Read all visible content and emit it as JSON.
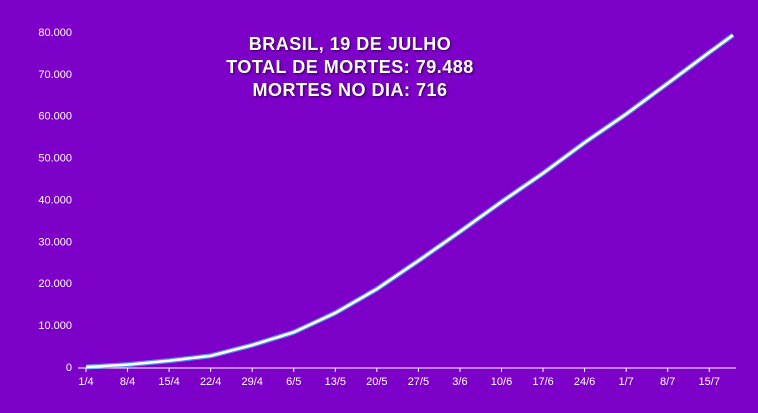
{
  "chart_data": {
    "type": "line",
    "title_lines": [
      "BRASIL,  19 DE JULHO",
      "TOTAL DE MORTES: 79.488",
      "MORTES NO DIA: 716"
    ],
    "categories": [
      "1/4",
      null,
      null,
      null,
      null,
      null,
      null,
      "8/4",
      null,
      null,
      null,
      null,
      null,
      null,
      "15/4",
      null,
      null,
      null,
      null,
      null,
      null,
      "22/4",
      null,
      null,
      null,
      null,
      null,
      null,
      "29/4",
      null,
      null,
      null,
      null,
      null,
      null,
      "6/5",
      null,
      null,
      null,
      null,
      null,
      null,
      "13/5",
      null,
      null,
      null,
      null,
      null,
      null,
      "20/5",
      null,
      null,
      null,
      null,
      null,
      null,
      "27/5",
      null,
      null,
      null,
      null,
      null,
      null,
      "3/6",
      null,
      null,
      null,
      null,
      null,
      null,
      "10/6",
      null,
      null,
      null,
      null,
      null,
      null,
      "17/6",
      null,
      null,
      null,
      null,
      null,
      null,
      "24/6",
      null,
      null,
      null,
      null,
      null,
      null,
      "1/7",
      null,
      null,
      null,
      null,
      null,
      null,
      "8/7",
      null,
      null,
      null,
      null,
      null,
      null,
      "15/7",
      null,
      null,
      null,
      null
    ],
    "values": [
      241,
      321,
      401,
      481,
      560,
      640,
      720,
      800,
      934,
      1067,
      1201,
      1335,
      1469,
      1602,
      1736,
      1903,
      2070,
      2237,
      2405,
      2572,
      2739,
      2906,
      3272,
      3637,
      4003,
      4369,
      4735,
      5100,
      5466,
      5905,
      6343,
      6782,
      7220,
      7659,
      8097,
      8536,
      9195,
      9854,
      10513,
      11172,
      11831,
      12490,
      13149,
      13965,
      14780,
      15596,
      16412,
      17227,
      18043,
      18859,
      19822,
      20785,
      21747,
      22710,
      23673,
      24635,
      25598,
      26591,
      27584,
      28577,
      29570,
      30562,
      31555,
      32548,
      33567,
      34586,
      35605,
      36624,
      37642,
      38661,
      39680,
      40656,
      41631,
      42607,
      43583,
      44559,
      45534,
      46510,
      47556,
      48602,
      49647,
      50693,
      51739,
      52784,
      53830,
      54802,
      55773,
      56745,
      57717,
      58689,
      59660,
      60632,
      61679,
      62727,
      63774,
      64822,
      65869,
      66917,
      67964,
      69021,
      70079,
      71136,
      72194,
      73251,
      74309,
      75366,
      76397,
      77427,
      78458,
      79488
    ],
    "color": "#ffffff",
    "ylim": [
      0,
      80000
    ],
    "yticks": [
      0,
      {
        "value": 10000,
        "label": "10.000"
      },
      {
        "value": 20000,
        "label": "20.000"
      },
      {
        "value": 30000,
        "label": "30.000"
      },
      {
        "value": 40000,
        "label": "40.000"
      },
      {
        "value": 50000,
        "label": "50.000"
      },
      {
        "value": 60000,
        "label": "60.000"
      },
      {
        "value": 70000,
        "label": "70.000"
      },
      {
        "value": 80000,
        "label": "80.000"
      }
    ]
  }
}
